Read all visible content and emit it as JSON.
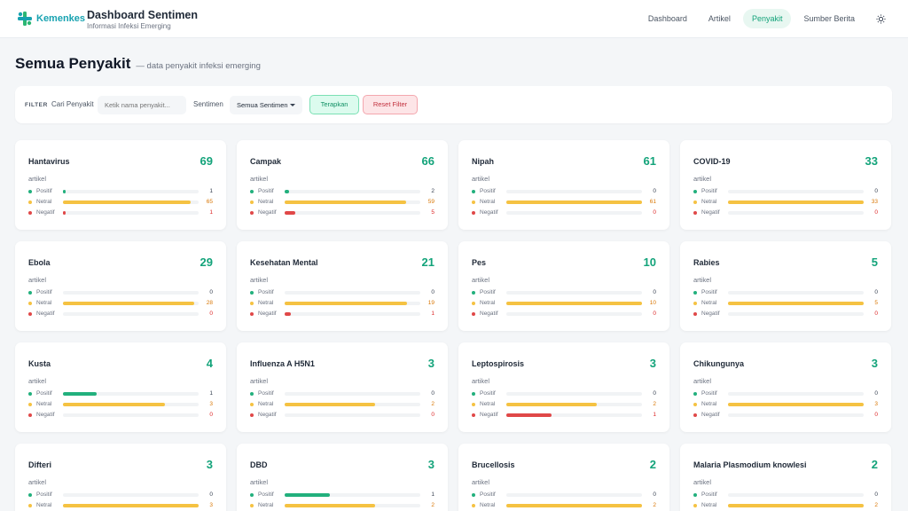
{
  "header": {
    "logo_text": "Kemenkes",
    "title": "Dashboard Sentimen",
    "subtitle": "Informasi Infeksi Emerging",
    "nav": [
      {
        "label": "Dashboard",
        "active": false
      },
      {
        "label": "Artikel",
        "active": false
      },
      {
        "label": "Penyakit",
        "active": true
      },
      {
        "label": "Sumber Berita",
        "active": false
      }
    ],
    "theme_icon": "sun-icon"
  },
  "page": {
    "title": "Semua Penyakit",
    "subtitle": "— data penyakit infeksi emerging"
  },
  "filter": {
    "label": "FILTER",
    "search_label": "Cari Penyakit",
    "search_placeholder": "Ketik nama penyakit...",
    "search_value": "",
    "sentiment_label": "Sentimen",
    "sentiment_value": "Semua Sentimen",
    "apply_label": "Terapkan",
    "reset_label": "Reset Filter"
  },
  "colors": {
    "positive": "#22b07d",
    "neutral": "#f5c242",
    "negative": "#e04848",
    "accent": "#13a37a"
  },
  "labels": {
    "unit": "artikel",
    "positive": "Positif",
    "neutral": "Netral",
    "negative": "Negatif"
  },
  "cards": [
    {
      "name": "Hantavirus",
      "total": 69,
      "positive": 1,
      "neutral": 65,
      "negative": 1
    },
    {
      "name": "Campak",
      "total": 66,
      "positive": 2,
      "neutral": 59,
      "negative": 5
    },
    {
      "name": "Nipah",
      "total": 61,
      "positive": 0,
      "neutral": 61,
      "negative": 0
    },
    {
      "name": "COVID-19",
      "total": 33,
      "positive": 0,
      "neutral": 33,
      "negative": 0
    },
    {
      "name": "Ebola",
      "total": 29,
      "positive": 0,
      "neutral": 28,
      "negative": 0
    },
    {
      "name": "Kesehatan Mental",
      "total": 21,
      "positive": 0,
      "neutral": 19,
      "negative": 1
    },
    {
      "name": "Pes",
      "total": 10,
      "positive": 0,
      "neutral": 10,
      "negative": 0
    },
    {
      "name": "Rabies",
      "total": 5,
      "positive": 0,
      "neutral": 5,
      "negative": 0
    },
    {
      "name": "Kusta",
      "total": 4,
      "positive": 1,
      "neutral": 3,
      "negative": 0
    },
    {
      "name": "Influenza A H5N1",
      "total": 3,
      "positive": 0,
      "neutral": 2,
      "negative": 0
    },
    {
      "name": "Leptospirosis",
      "total": 3,
      "positive": 0,
      "neutral": 2,
      "negative": 1
    },
    {
      "name": "Chikungunya",
      "total": 3,
      "positive": 0,
      "neutral": 3,
      "negative": 0
    },
    {
      "name": "Difteri",
      "total": 3,
      "positive": 0,
      "neutral": 3,
      "negative": 0
    },
    {
      "name": "DBD",
      "total": 3,
      "positive": 1,
      "neutral": 2,
      "negative": 0
    },
    {
      "name": "Brucellosis",
      "total": 2,
      "positive": 0,
      "neutral": 2,
      "negative": 0
    },
    {
      "name": "Malaria Plasmodium knowlesi",
      "total": 2,
      "positive": 0,
      "neutral": 2,
      "negative": 0
    }
  ]
}
